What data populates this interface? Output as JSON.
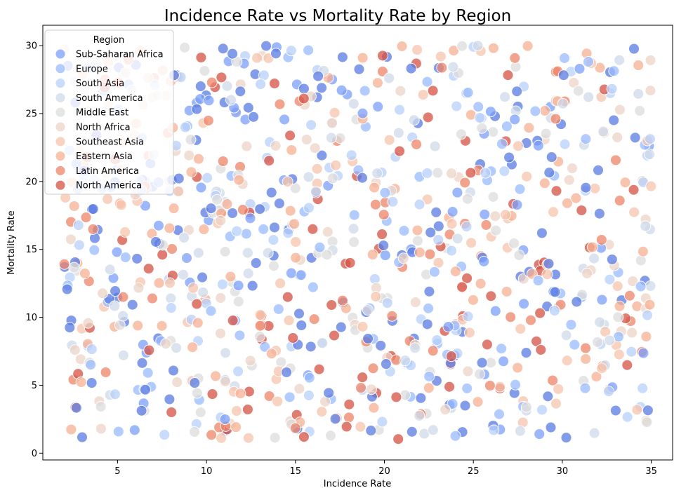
{
  "chart_data": {
    "type": "scatter",
    "title": "Incidence Rate vs Mortality Rate by Region",
    "xlabel": "Incidence Rate",
    "ylabel": "Mortality Rate",
    "xlim": [
      0.8,
      36.2
    ],
    "ylim": [
      -0.5,
      31.5
    ],
    "xticks": [
      5,
      10,
      15,
      20,
      25,
      30,
      35
    ],
    "yticks": [
      0,
      5,
      10,
      15,
      20,
      25,
      30
    ],
    "grid": false,
    "legend": {
      "title": "Region",
      "placement": "top-left"
    },
    "point_distribution": {
      "x_range": [
        2,
        35
      ],
      "y_range": [
        1,
        30
      ],
      "description_count_per_series": 1000
    },
    "series": [
      {
        "name": "Sub-Saharan Africa",
        "color": "#7b9ff9"
      },
      {
        "name": "Europe",
        "color": "#9abbff"
      },
      {
        "name": "South Asia",
        "color": "#b8d0f9"
      },
      {
        "name": "South America",
        "color": "#cfdaea"
      },
      {
        "name": "Middle East",
        "color": "#dddcdc"
      },
      {
        "name": "North Africa",
        "color": "#ecd3c5"
      },
      {
        "name": "Southeast Asia",
        "color": "#f5c4ac"
      },
      {
        "name": "Eastern Asia",
        "color": "#f7b093"
      },
      {
        "name": "Latin America",
        "color": "#ee8468"
      },
      {
        "name": "North America",
        "color": "#d65244"
      }
    ],
    "extra_colors": {
      "dark_blue": "#5a7be3"
    },
    "point_alpha": 0.75
  }
}
